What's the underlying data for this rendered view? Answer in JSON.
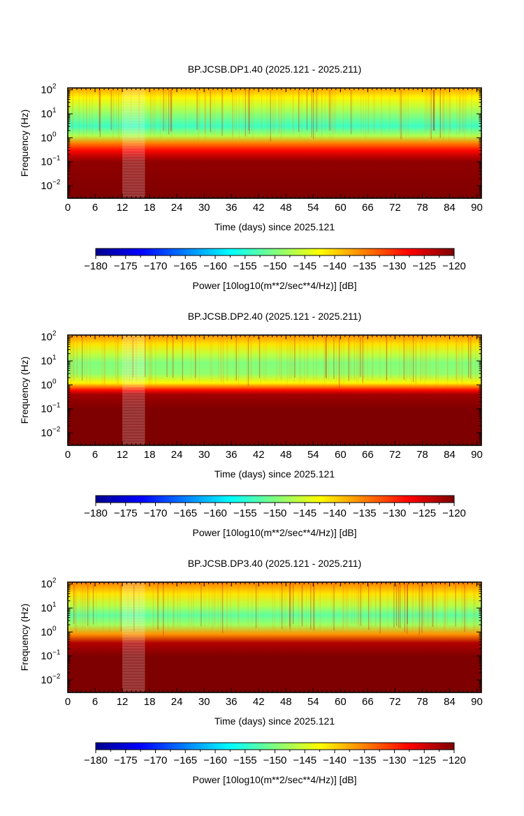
{
  "figure": {
    "colormap": [
      "#00008f",
      "#0000ff",
      "#007fff",
      "#00ffff",
      "#7fff7f",
      "#ffff00",
      "#ff7f00",
      "#ff0000",
      "#7f0000"
    ]
  },
  "chart_data": [
    {
      "type": "heatmap",
      "title": "BP.JCSB.DP1.40 (2025.121 - 2025.211)",
      "xlabel": "Time (days) since 2025.121",
      "ylabel": "Frequency (Hz)",
      "xlim": [
        0,
        91
      ],
      "ylim": [
        0.003,
        120
      ],
      "yscale": "log",
      "x_ticks": [
        "0",
        "6",
        "12",
        "18",
        "24",
        "30",
        "36",
        "42",
        "48",
        "54",
        "60",
        "66",
        "72",
        "78",
        "84",
        "90"
      ],
      "y_ticks": [
        {
          "base": "10",
          "exp": "2",
          "value": 100
        },
        {
          "base": "10",
          "exp": "1",
          "value": 10
        },
        {
          "base": "10",
          "exp": "0",
          "value": 1
        },
        {
          "base": "10",
          "exp": "−1",
          "value": 0.1
        },
        {
          "base": "10",
          "exp": "−2",
          "value": 0.01
        }
      ],
      "power_profile_db": [
        {
          "freq_hz": 120,
          "db": -137
        },
        {
          "freq_hz": 50,
          "db": -142
        },
        {
          "freq_hz": 20,
          "db": -146
        },
        {
          "freq_hz": 8,
          "db": -150
        },
        {
          "freq_hz": 3,
          "db": -154
        },
        {
          "freq_hz": 1.2,
          "db": -147
        },
        {
          "freq_hz": 0.6,
          "db": -135
        },
        {
          "freq_hz": 0.3,
          "db": -128
        },
        {
          "freq_hz": 0.15,
          "db": -123
        },
        {
          "freq_hz": 0.1,
          "db": -121
        },
        {
          "freq_hz": 0.003,
          "db": -120
        }
      ],
      "gap_days": [
        12,
        17
      ],
      "colorbar": {
        "range_db": [
          -180,
          -120
        ],
        "ticks": [
          "−180",
          "−175",
          "−170",
          "−165",
          "−160",
          "−155",
          "−150",
          "−145",
          "−140",
          "−135",
          "−130",
          "−125",
          "−120"
        ],
        "label": "Power [10log10(m**2/sec**4/Hz)] [dB]"
      }
    },
    {
      "type": "heatmap",
      "title": "BP.JCSB.DP2.40 (2025.121 - 2025.211)",
      "xlabel": "Time (days) since 2025.121",
      "ylabel": "Frequency (Hz)",
      "xlim": [
        0,
        91
      ],
      "ylim": [
        0.003,
        120
      ],
      "yscale": "log",
      "x_ticks": [
        "0",
        "6",
        "12",
        "18",
        "24",
        "30",
        "36",
        "42",
        "48",
        "54",
        "60",
        "66",
        "72",
        "78",
        "84",
        "90"
      ],
      "y_ticks": [
        {
          "base": "10",
          "exp": "2",
          "value": 100
        },
        {
          "base": "10",
          "exp": "1",
          "value": 10
        },
        {
          "base": "10",
          "exp": "0",
          "value": 1
        },
        {
          "base": "10",
          "exp": "−1",
          "value": 0.1
        },
        {
          "base": "10",
          "exp": "−2",
          "value": 0.01
        }
      ],
      "power_profile_db": [
        {
          "freq_hz": 120,
          "db": -136
        },
        {
          "freq_hz": 50,
          "db": -141
        },
        {
          "freq_hz": 20,
          "db": -146
        },
        {
          "freq_hz": 8,
          "db": -150
        },
        {
          "freq_hz": 3,
          "db": -149
        },
        {
          "freq_hz": 1.2,
          "db": -142
        },
        {
          "freq_hz": 0.6,
          "db": -128
        },
        {
          "freq_hz": 0.4,
          "db": -122
        },
        {
          "freq_hz": 0.1,
          "db": -120
        },
        {
          "freq_hz": 0.003,
          "db": -120
        }
      ],
      "gap_days": [
        12,
        17
      ],
      "colorbar": {
        "range_db": [
          -180,
          -120
        ],
        "ticks": [
          "−180",
          "−175",
          "−170",
          "−165",
          "−160",
          "−155",
          "−150",
          "−145",
          "−140",
          "−135",
          "−130",
          "−125",
          "−120"
        ],
        "label": "Power [10log10(m**2/sec**4/Hz)] [dB]"
      }
    },
    {
      "type": "heatmap",
      "title": "BP.JCSB.DP3.40 (2025.121 - 2025.211)",
      "xlabel": "Time (days) since 2025.121",
      "ylabel": "Frequency (Hz)",
      "xlim": [
        0,
        91
      ],
      "ylim": [
        0.003,
        120
      ],
      "yscale": "log",
      "x_ticks": [
        "0",
        "6",
        "12",
        "18",
        "24",
        "30",
        "36",
        "42",
        "48",
        "54",
        "60",
        "66",
        "72",
        "78",
        "84",
        "90"
      ],
      "y_ticks": [
        {
          "base": "10",
          "exp": "2",
          "value": 100
        },
        {
          "base": "10",
          "exp": "1",
          "value": 10
        },
        {
          "base": "10",
          "exp": "0",
          "value": 1
        },
        {
          "base": "10",
          "exp": "−1",
          "value": 0.1
        },
        {
          "base": "10",
          "exp": "−2",
          "value": 0.01
        }
      ],
      "power_profile_db": [
        {
          "freq_hz": 120,
          "db": -135
        },
        {
          "freq_hz": 40,
          "db": -141
        },
        {
          "freq_hz": 12,
          "db": -147
        },
        {
          "freq_hz": 5,
          "db": -152
        },
        {
          "freq_hz": 2,
          "db": -148
        },
        {
          "freq_hz": 0.8,
          "db": -136
        },
        {
          "freq_hz": 0.35,
          "db": -123
        },
        {
          "freq_hz": 0.1,
          "db": -120
        },
        {
          "freq_hz": 0.003,
          "db": -120
        }
      ],
      "gap_days": [
        12,
        17
      ],
      "colorbar": {
        "range_db": [
          -180,
          -120
        ],
        "ticks": [
          "−180",
          "−175",
          "−170",
          "−165",
          "−160",
          "−155",
          "−150",
          "−145",
          "−140",
          "−135",
          "−130",
          "−125",
          "−120"
        ],
        "label": "Power [10log10(m**2/sec**4/Hz)] [dB]"
      }
    }
  ]
}
